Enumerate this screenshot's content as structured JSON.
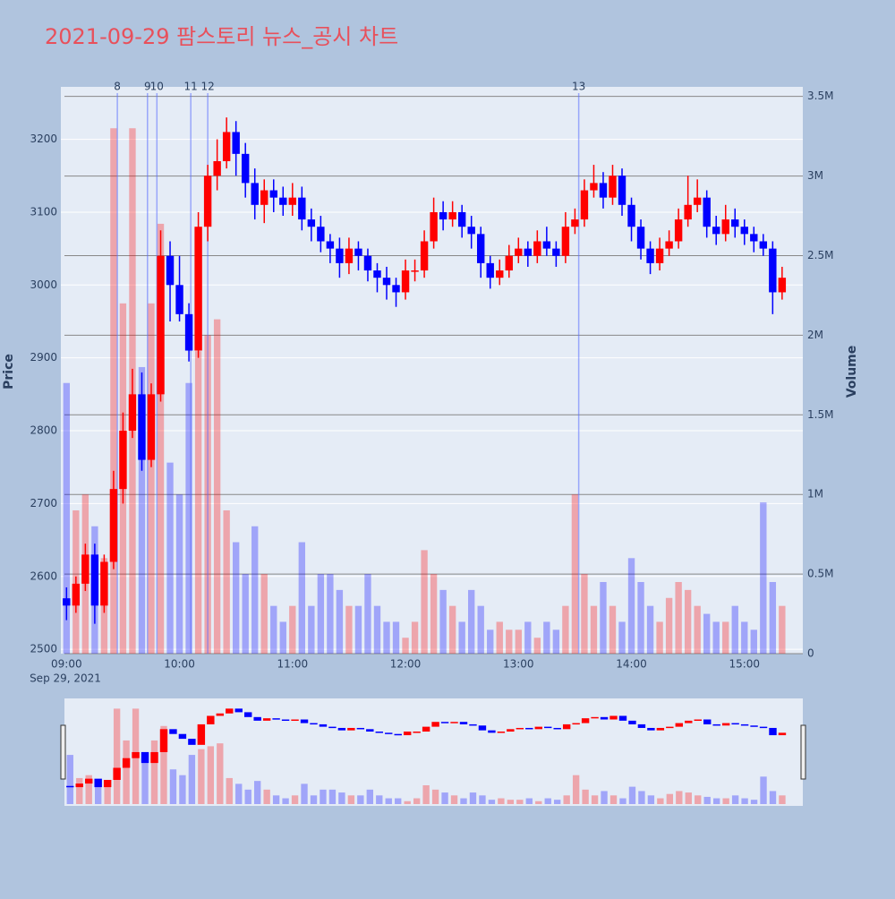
{
  "chart_data": {
    "type": "candlestick",
    "title": "2021-09-29 팜스토리 뉴스_공시 차트",
    "y_label": "Price",
    "y2_label": "Volume",
    "x_date_label": "Sep 29, 2021",
    "increasing_color": "#ff0000",
    "decreasing_color": "#0000ff",
    "x": [
      "09:00",
      "09:05",
      "09:10",
      "09:15",
      "09:20",
      "09:25",
      "09:30",
      "09:35",
      "09:40",
      "09:45",
      "09:50",
      "09:55",
      "10:00",
      "10:05",
      "10:10",
      "10:15",
      "10:20",
      "10:25",
      "10:30",
      "10:35",
      "10:40",
      "10:45",
      "10:50",
      "10:55",
      "11:00",
      "11:05",
      "11:10",
      "11:15",
      "11:20",
      "11:25",
      "11:30",
      "11:35",
      "11:40",
      "11:45",
      "11:50",
      "11:55",
      "12:00",
      "12:05",
      "12:10",
      "12:15",
      "12:20",
      "12:25",
      "12:30",
      "12:35",
      "12:40",
      "12:45",
      "12:50",
      "12:55",
      "13:00",
      "13:05",
      "13:10",
      "13:15",
      "13:20",
      "13:25",
      "13:30",
      "13:35",
      "13:40",
      "13:45",
      "13:50",
      "13:55",
      "14:00",
      "14:05",
      "14:10",
      "14:15",
      "14:20",
      "14:25",
      "14:30",
      "14:35",
      "14:40",
      "14:45",
      "14:50",
      "14:55",
      "15:00",
      "15:05",
      "15:10",
      "15:15",
      "15:20"
    ],
    "open": [
      2570,
      2560,
      2590,
      2630,
      2560,
      2620,
      2720,
      2800,
      2850,
      2760,
      2850,
      3040,
      3000,
      2960,
      2910,
      3080,
      3150,
      3170,
      3210,
      3180,
      3140,
      3110,
      3130,
      3120,
      3110,
      3120,
      3090,
      3080,
      3060,
      3050,
      3030,
      3050,
      3040,
      3020,
      3010,
      3000,
      2990,
      3020,
      3020,
      3060,
      3100,
      3090,
      3100,
      3080,
      3070,
      3030,
      3010,
      3020,
      3040,
      3050,
      3040,
      3060,
      3050,
      3040,
      3080,
      3090,
      3130,
      3140,
      3120,
      3150,
      3110,
      3080,
      3050,
      3030,
      3050,
      3060,
      3090,
      3110,
      3120,
      3080,
      3070,
      3090,
      3080,
      3070,
      3060,
      3050,
      2990
    ],
    "high": [
      2585,
      2600,
      2645,
      2645,
      2630,
      2745,
      2825,
      2885,
      2880,
      2865,
      3075,
      3060,
      3040,
      2975,
      3100,
      3165,
      3200,
      3230,
      3225,
      3195,
      3160,
      3145,
      3145,
      3135,
      3140,
      3135,
      3105,
      3095,
      3070,
      3065,
      3065,
      3060,
      3050,
      3030,
      3025,
      3010,
      3035,
      3035,
      3075,
      3120,
      3115,
      3115,
      3110,
      3095,
      3080,
      3040,
      3035,
      3055,
      3065,
      3060,
      3075,
      3080,
      3060,
      3100,
      3105,
      3145,
      3165,
      3155,
      3165,
      3160,
      3120,
      3090,
      3060,
      3065,
      3075,
      3105,
      3150,
      3145,
      3130,
      3095,
      3110,
      3105,
      3090,
      3080,
      3070,
      3060,
      3025
    ],
    "low": [
      2540,
      2550,
      2580,
      2535,
      2550,
      2610,
      2700,
      2790,
      2745,
      2750,
      2840,
      2950,
      2950,
      2895,
      2900,
      3060,
      3130,
      3160,
      3150,
      3120,
      3090,
      3085,
      3100,
      3095,
      3095,
      3075,
      3060,
      3045,
      3030,
      3010,
      3015,
      3020,
      3005,
      2990,
      2980,
      2970,
      2980,
      3005,
      3010,
      3050,
      3075,
      3080,
      3065,
      3050,
      3010,
      2995,
      3000,
      3010,
      3030,
      3025,
      3030,
      3040,
      3025,
      3030,
      3070,
      3080,
      3120,
      3105,
      3110,
      3095,
      3060,
      3035,
      3015,
      3020,
      3040,
      3050,
      3080,
      3100,
      3065,
      3055,
      3060,
      3065,
      3055,
      3045,
      3040,
      2960,
      2980
    ],
    "close": [
      2560,
      2590,
      2630,
      2560,
      2620,
      2720,
      2800,
      2850,
      2760,
      2850,
      3040,
      3000,
      2960,
      2910,
      3080,
      3150,
      3170,
      3210,
      3180,
      3140,
      3110,
      3130,
      3120,
      3110,
      3120,
      3090,
      3080,
      3060,
      3050,
      3030,
      3050,
      3040,
      3020,
      3010,
      3000,
      2990,
      3020,
      3020,
      3060,
      3100,
      3090,
      3100,
      3080,
      3070,
      3030,
      3010,
      3020,
      3040,
      3050,
      3040,
      3060,
      3050,
      3040,
      3080,
      3090,
      3130,
      3140,
      3120,
      3150,
      3110,
      3080,
      3050,
      3030,
      3050,
      3060,
      3090,
      3110,
      3120,
      3080,
      3070,
      3090,
      3080,
      3070,
      3060,
      3050,
      2990,
      3010
    ],
    "volume": [
      1700000,
      900000,
      1000000,
      800000,
      600000,
      3300000,
      2200000,
      3300000,
      1800000,
      2200000,
      2700000,
      1200000,
      1000000,
      1700000,
      1900000,
      2000000,
      2100000,
      900000,
      700000,
      500000,
      800000,
      500000,
      300000,
      200000,
      300000,
      700000,
      300000,
      500000,
      500000,
      400000,
      300000,
      300000,
      500000,
      300000,
      200000,
      200000,
      100000,
      200000,
      650000,
      500000,
      400000,
      300000,
      200000,
      400000,
      300000,
      150000,
      200000,
      150000,
      150000,
      200000,
      100000,
      200000,
      150000,
      300000,
      1000000,
      500000,
      300000,
      450000,
      300000,
      200000,
      600000,
      450000,
      300000,
      200000,
      350000,
      450000,
      400000,
      300000,
      250000,
      200000,
      200000,
      300000,
      200000,
      150000,
      950000,
      450000,
      300000
    ],
    "xlim": [
      "08:57",
      "15:31"
    ],
    "xticks": [
      "09:00",
      "10:00",
      "11:00",
      "12:00",
      "13:00",
      "14:00",
      "15:00"
    ],
    "ylim": [
      2494,
      3272
    ],
    "yticks": [
      2500,
      2600,
      2700,
      2800,
      2900,
      3000,
      3100,
      3200
    ],
    "y2lim": [
      0,
      3560000
    ],
    "y2ticks": [
      0,
      {
        "value": 500000,
        "label": "0.5M"
      },
      {
        "value": 1000000,
        "label": "1M"
      },
      {
        "value": 1500000,
        "label": "1.5M"
      },
      {
        "value": 2000000,
        "label": "2M"
      },
      {
        "value": 2500000,
        "label": "2.5M"
      },
      {
        "value": 3000000,
        "label": "3M"
      },
      {
        "value": 3500000,
        "label": "3.5M"
      }
    ],
    "annotations": [
      {
        "x": "09:27",
        "text": "8"
      },
      {
        "x": "09:43",
        "text": "9"
      },
      {
        "x": "09:48",
        "text": "10"
      },
      {
        "x": "10:06",
        "text": "11"
      },
      {
        "x": "10:15",
        "text": "12"
      },
      {
        "x": "13:32",
        "text": "13"
      }
    ],
    "grid": true
  }
}
